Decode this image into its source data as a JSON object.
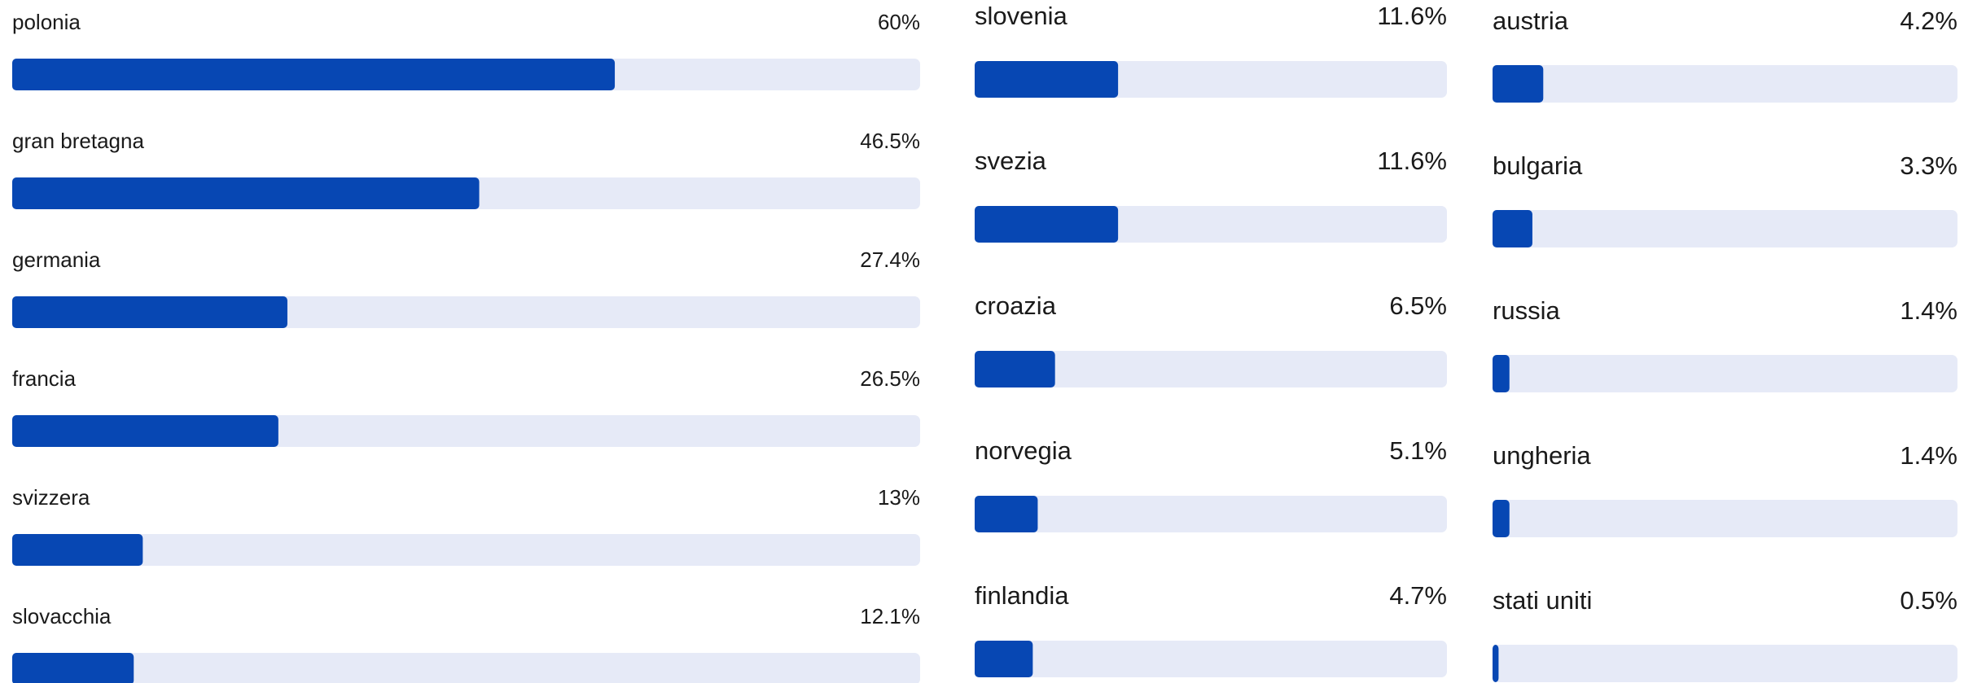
{
  "chart_data": [
    {
      "type": "bar",
      "color": "#0747b3",
      "xlim": [
        0,
        90.4
      ],
      "categories": [
        "polonia",
        "gran bretagna",
        "germania",
        "francia",
        "svizzera",
        "slovacchia"
      ],
      "values": [
        60,
        46.5,
        27.4,
        26.5,
        13,
        12.1
      ],
      "value_labels": [
        "60%",
        "46.5%",
        "27.4%",
        "26.5%",
        "13%",
        "12.1%"
      ]
    },
    {
      "type": "bar",
      "color": "#0747b3",
      "xlim": [
        0,
        38.2
      ],
      "categories": [
        "slovenia",
        "svezia",
        "croazia",
        "norvegia",
        "finlandia"
      ],
      "values": [
        11.6,
        11.6,
        6.5,
        5.1,
        4.7
      ],
      "value_labels": [
        "11.6%",
        "11.6%",
        "6.5%",
        "5.1%",
        "4.7%"
      ]
    },
    {
      "type": "bar",
      "color": "#0747b3",
      "xlim": [
        0,
        38.5
      ],
      "categories": [
        "austria",
        "bulgaria",
        "russia",
        "ungheria",
        "stati uniti"
      ],
      "values": [
        4.2,
        3.3,
        1.4,
        1.4,
        0.5
      ],
      "value_labels": [
        "4.2%",
        "3.3%",
        "1.4%",
        "1.4%",
        "0.5%"
      ]
    }
  ]
}
